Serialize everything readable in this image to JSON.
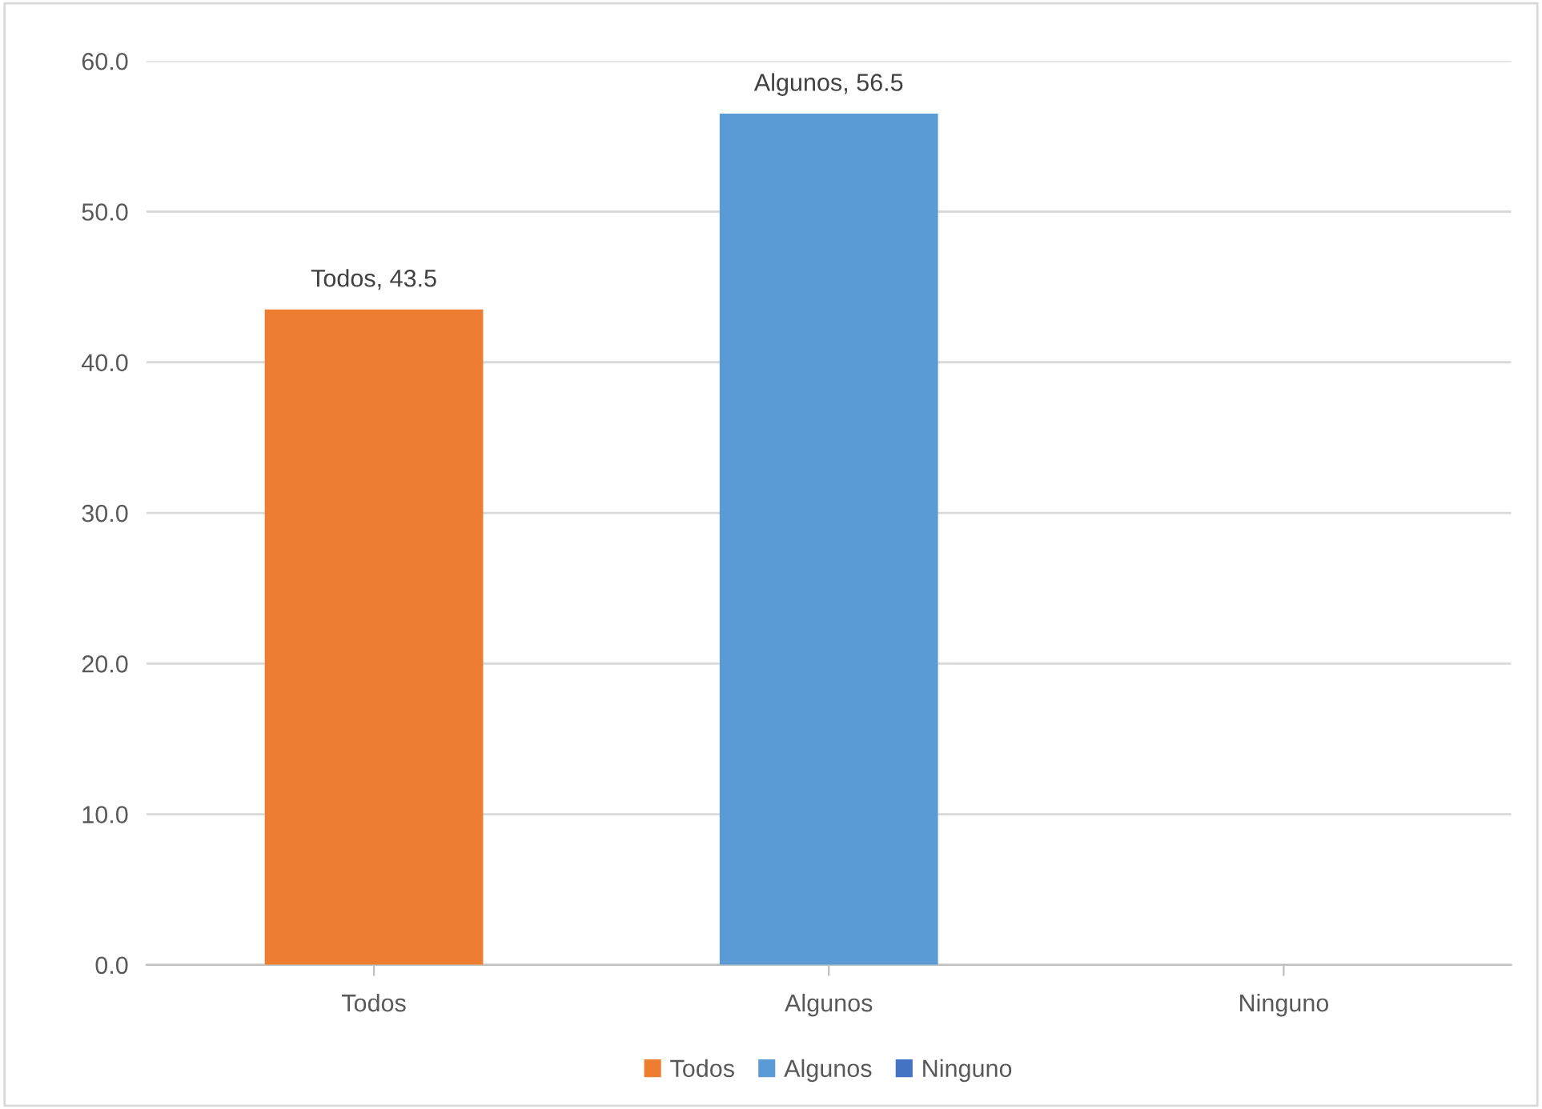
{
  "chart_data": {
    "type": "bar",
    "categories": [
      "Todos",
      "Algunos",
      "Ninguno"
    ],
    "series": [
      {
        "name": "Todos",
        "color": "#ed7d31",
        "values": [
          43.5,
          null,
          null
        ],
        "value_labels": [
          "Todos, 43.5",
          null,
          null
        ]
      },
      {
        "name": "Algunos",
        "color": "#5b9bd5",
        "values": [
          null,
          56.5,
          null
        ],
        "value_labels": [
          null,
          "Algunos, 56.5",
          null
        ]
      },
      {
        "name": "Ninguno",
        "color": "#4472c4",
        "values": [
          null,
          null,
          0
        ],
        "value_labels": [
          null,
          null,
          null
        ]
      }
    ],
    "ylim": [
      0,
      60
    ],
    "yticks": [
      {
        "value": 0,
        "label": "0.0"
      },
      {
        "value": 10,
        "label": "10.0"
      },
      {
        "value": 20,
        "label": "20.0"
      },
      {
        "value": 30,
        "label": "30.0"
      },
      {
        "value": 40,
        "label": "40.0"
      },
      {
        "value": 50,
        "label": "50.0"
      },
      {
        "value": 60,
        "label": "60.0"
      }
    ],
    "grid": "y",
    "legend": "bottom"
  }
}
